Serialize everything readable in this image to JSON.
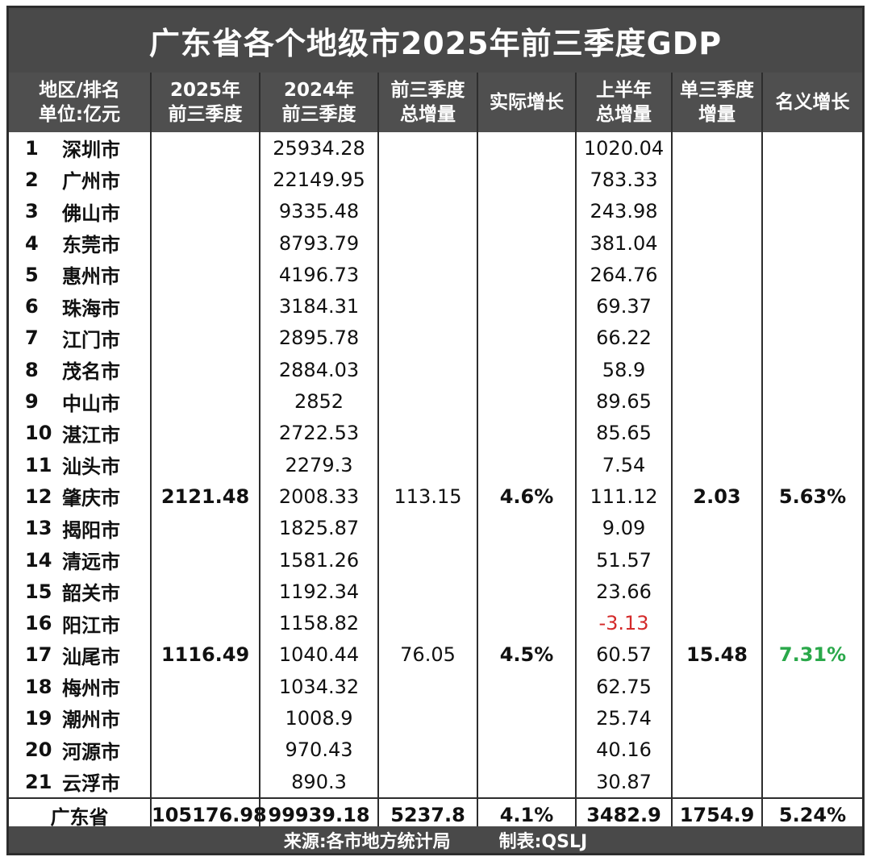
{
  "title": "广东省各个地级市2025年前三季度GDP",
  "headers": {
    "region_line1": "地区/排名",
    "region_line2": "单位:亿元",
    "gdp2025_line1": "2025年",
    "gdp2025_line2": "前三季度",
    "gdp2024_line1": "2024年",
    "gdp2024_line2": "前三季度",
    "increase_line1": "前三季度",
    "increase_line2": "总增量",
    "real_growth": "实际增长",
    "h1_line1": "上半年",
    "h1_line2": "总增量",
    "q3_line1": "单三季度",
    "q3_line2": "增量",
    "nominal_growth": "名义增长"
  },
  "rows": [
    {
      "rank": "1",
      "city": "深圳市",
      "gdp2025": "",
      "gdp2024": "25934.28",
      "increase": "",
      "real_growth": "",
      "h1_increase": "1020.04",
      "q3_increase": "",
      "nominal_growth": ""
    },
    {
      "rank": "2",
      "city": "广州市",
      "gdp2025": "",
      "gdp2024": "22149.95",
      "increase": "",
      "real_growth": "",
      "h1_increase": "783.33",
      "q3_increase": "",
      "nominal_growth": ""
    },
    {
      "rank": "3",
      "city": "佛山市",
      "gdp2025": "",
      "gdp2024": "9335.48",
      "increase": "",
      "real_growth": "",
      "h1_increase": "243.98",
      "q3_increase": "",
      "nominal_growth": ""
    },
    {
      "rank": "4",
      "city": "东莞市",
      "gdp2025": "",
      "gdp2024": "8793.79",
      "increase": "",
      "real_growth": "",
      "h1_increase": "381.04",
      "q3_increase": "",
      "nominal_growth": ""
    },
    {
      "rank": "5",
      "city": "惠州市",
      "gdp2025": "",
      "gdp2024": "4196.73",
      "increase": "",
      "real_growth": "",
      "h1_increase": "264.76",
      "q3_increase": "",
      "nominal_growth": ""
    },
    {
      "rank": "6",
      "city": "珠海市",
      "gdp2025": "",
      "gdp2024": "3184.31",
      "increase": "",
      "real_growth": "",
      "h1_increase": "69.37",
      "q3_increase": "",
      "nominal_growth": ""
    },
    {
      "rank": "7",
      "city": "江门市",
      "gdp2025": "",
      "gdp2024": "2895.78",
      "increase": "",
      "real_growth": "",
      "h1_increase": "66.22",
      "q3_increase": "",
      "nominal_growth": ""
    },
    {
      "rank": "8",
      "city": "茂名市",
      "gdp2025": "",
      "gdp2024": "2884.03",
      "increase": "",
      "real_growth": "",
      "h1_increase": "58.9",
      "q3_increase": "",
      "nominal_growth": ""
    },
    {
      "rank": "9",
      "city": "中山市",
      "gdp2025": "",
      "gdp2024": "2852",
      "increase": "",
      "real_growth": "",
      "h1_increase": "89.65",
      "q3_increase": "",
      "nominal_growth": ""
    },
    {
      "rank": "10",
      "city": "湛江市",
      "gdp2025": "",
      "gdp2024": "2722.53",
      "increase": "",
      "real_growth": "",
      "h1_increase": "85.65",
      "q3_increase": "",
      "nominal_growth": ""
    },
    {
      "rank": "11",
      "city": "汕头市",
      "gdp2025": "",
      "gdp2024": "2279.3",
      "increase": "",
      "real_growth": "",
      "h1_increase": "7.54",
      "q3_increase": "",
      "nominal_growth": ""
    },
    {
      "rank": "12",
      "city": "肇庆市",
      "gdp2025": "2121.48",
      "gdp2024": "2008.33",
      "increase": "113.15",
      "real_growth": "4.6%",
      "h1_increase": "111.12",
      "q3_increase": "2.03",
      "nominal_growth": "5.63%"
    },
    {
      "rank": "13",
      "city": "揭阳市",
      "gdp2025": "",
      "gdp2024": "1825.87",
      "increase": "",
      "real_growth": "",
      "h1_increase": "9.09",
      "q3_increase": "",
      "nominal_growth": ""
    },
    {
      "rank": "14",
      "city": "清远市",
      "gdp2025": "",
      "gdp2024": "1581.26",
      "increase": "",
      "real_growth": "",
      "h1_increase": "51.57",
      "q3_increase": "",
      "nominal_growth": ""
    },
    {
      "rank": "15",
      "city": "韶关市",
      "gdp2025": "",
      "gdp2024": "1192.34",
      "increase": "",
      "real_growth": "",
      "h1_increase": "23.66",
      "q3_increase": "",
      "nominal_growth": ""
    },
    {
      "rank": "16",
      "city": "阳江市",
      "gdp2025": "",
      "gdp2024": "1158.82",
      "increase": "",
      "real_growth": "",
      "h1_increase": "-3.13",
      "q3_increase": "",
      "nominal_growth": ""
    },
    {
      "rank": "17",
      "city": "汕尾市",
      "gdp2025": "1116.49",
      "gdp2024": "1040.44",
      "increase": "76.05",
      "real_growth": "4.5%",
      "h1_increase": "60.57",
      "q3_increase": "15.48",
      "nominal_growth": "7.31%"
    },
    {
      "rank": "18",
      "city": "梅州市",
      "gdp2025": "",
      "gdp2024": "1034.32",
      "increase": "",
      "real_growth": "",
      "h1_increase": "62.75",
      "q3_increase": "",
      "nominal_growth": ""
    },
    {
      "rank": "19",
      "city": "潮州市",
      "gdp2025": "",
      "gdp2024": "1008.9",
      "increase": "",
      "real_growth": "",
      "h1_increase": "25.74",
      "q3_increase": "",
      "nominal_growth": ""
    },
    {
      "rank": "20",
      "city": "河源市",
      "gdp2025": "",
      "gdp2024": "970.43",
      "increase": "",
      "real_growth": "",
      "h1_increase": "40.16",
      "q3_increase": "",
      "nominal_growth": ""
    },
    {
      "rank": "21",
      "city": "云浮市",
      "gdp2025": "",
      "gdp2024": "890.3",
      "increase": "",
      "real_growth": "",
      "h1_increase": "30.87",
      "q3_increase": "",
      "nominal_growth": ""
    }
  ],
  "total": {
    "name": "广东省",
    "gdp2025": "105176.98",
    "gdp2024": "99939.18",
    "increase": "5237.8",
    "real_growth": "4.1%",
    "h1_increase": "3482.9",
    "q3_increase": "1754.9",
    "nominal_growth": "5.24%"
  },
  "footer": {
    "source": "来源:各市地方统计局",
    "maker": "制表:QSLJ"
  },
  "colors": {
    "negative": "#d42a2a",
    "positive": "#2aa84a"
  }
}
